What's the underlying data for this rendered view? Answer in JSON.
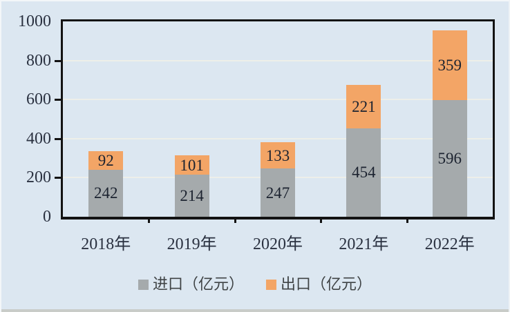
{
  "chart_data": {
    "type": "bar",
    "stacked": true,
    "title": "",
    "categories": [
      "2018年",
      "2019年",
      "2020年",
      "2021年",
      "2022年"
    ],
    "series": [
      {
        "name": "进口（亿元）",
        "color": "#a5aaac",
        "values": [
          242,
          214,
          247,
          454,
          596
        ]
      },
      {
        "name": "出口（亿元）",
        "color": "#f3a566",
        "values": [
          92,
          101,
          133,
          221,
          359
        ]
      }
    ],
    "ylim": [
      0,
      1000
    ],
    "yticks": [
      0,
      200,
      400,
      600,
      800,
      1000
    ],
    "grid": true,
    "legend_position": "bottom",
    "xlabel": "",
    "ylabel": "",
    "colors": {
      "background": "#dce7f1",
      "gridline": "#edefe9",
      "axis": "#131313",
      "tick_label": "#2a3140",
      "value_label": "#1c2330",
      "legend_text": "#3f4345"
    }
  }
}
